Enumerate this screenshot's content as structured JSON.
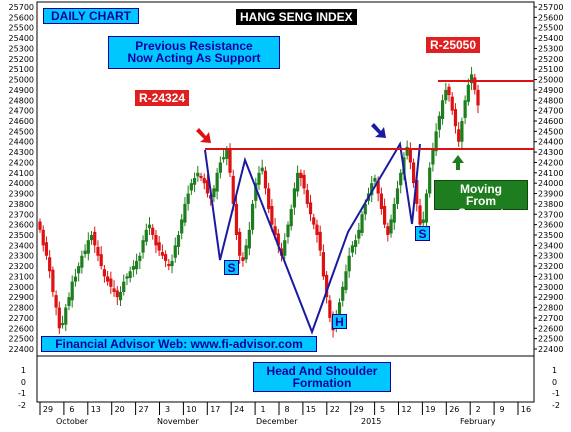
{
  "chart_data": {
    "type": "candlestick",
    "title": "HANG SENG INDEX",
    "y_axis_ticks": [
      "25700",
      "25600",
      "25500",
      "25400",
      "25300",
      "25200",
      "25100",
      "25000",
      "24900",
      "24800",
      "24700",
      "24600",
      "24500",
      "24400",
      "24300",
      "24200",
      "24100",
      "24000",
      "23900",
      "23800",
      "23700",
      "23600",
      "23500",
      "23400",
      "23300",
      "23200",
      "23100",
      "23000",
      "22900",
      "22800",
      "22700",
      "22600",
      "22500",
      "22400"
    ],
    "ylim": [
      22400,
      25700
    ],
    "lower_panel_ticks": [
      "1",
      "0",
      "-1",
      "-2"
    ],
    "x_tick_labels": [
      "29",
      "6",
      "13",
      "20",
      "27",
      "3",
      "10",
      "17",
      "24",
      "1",
      "8",
      "15",
      "22",
      "29",
      "5",
      "12",
      "19",
      "26",
      "2",
      "9",
      "16"
    ],
    "month_labels": [
      "October",
      "November",
      "December",
      "2015",
      "February"
    ],
    "up_color": "#1e7d1e",
    "down_color": "#dd1111",
    "pattern_line_color": "#1a1aa0",
    "resistance_line_color": "#dd1111",
    "resistance_level": 24324,
    "upper_resistance_level": 25050,
    "candles_close": [
      23550,
      23400,
      23300,
      23150,
      22950,
      22800,
      22600,
      22650,
      22800,
      22900,
      23050,
      23100,
      23200,
      23300,
      23350,
      23450,
      23500,
      23400,
      23300,
      23200,
      23100,
      23050,
      23000,
      22950,
      22900,
      22950,
      23050,
      23100,
      23150,
      23200,
      23250,
      23300,
      23450,
      23550,
      23600,
      23500,
      23400,
      23350,
      23300,
      23250,
      23200,
      23250,
      23400,
      23500,
      23650,
      23800,
      23900,
      24000,
      24050,
      24100,
      24050,
      24000,
      23900,
      23850,
      23950,
      24100,
      24200,
      24250,
      24324,
      24100,
      23800,
      23500,
      23300,
      23250,
      23400,
      23550,
      23800,
      24000,
      24100,
      24150,
      23950,
      23750,
      23600,
      23500,
      23400,
      23300,
      23450,
      23600,
      23750,
      23950,
      24100,
      24050,
      23950,
      23800,
      23700,
      23600,
      23500,
      23350,
      23100,
      22900,
      22700,
      22580,
      22700,
      22850,
      23000,
      23150,
      23300,
      23400,
      23450,
      23550,
      23700,
      23800,
      23900,
      24000,
      24050,
      23900,
      23750,
      23600,
      23500,
      23650,
      23800,
      23950,
      24100,
      24250,
      24350,
      24200,
      24000,
      23800,
      23600,
      23650,
      23900,
      24150,
      24324,
      24500,
      24650,
      24800,
      24900,
      24850,
      24700,
      24550,
      24400,
      24600,
      24800,
      24950,
      25050,
      24900,
      24750
    ]
  },
  "annotations": {
    "daily_chart": "DAILY CHART",
    "title_box": "HANG SENG INDEX",
    "prev_resistance": "Previous Resistance Now Acting As Support",
    "r1": "R-24324",
    "r2": "R-25050",
    "moving_from_support": "Moving From Support",
    "s1": "S",
    "s2": "S",
    "h": "H",
    "website": "Financial Advisor Web: www.fi-advisor.com",
    "hs_formation": "Head And Shoulder Formation"
  }
}
